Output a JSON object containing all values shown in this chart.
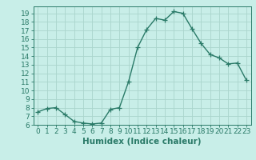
{
  "x": [
    0,
    1,
    2,
    3,
    4,
    5,
    6,
    7,
    8,
    9,
    10,
    11,
    12,
    13,
    14,
    15,
    16,
    17,
    18,
    19,
    20,
    21,
    22,
    23
  ],
  "y": [
    7.5,
    7.9,
    8.0,
    7.2,
    6.4,
    6.2,
    6.1,
    6.2,
    7.8,
    8.0,
    11.0,
    15.0,
    17.1,
    18.4,
    18.2,
    19.2,
    19.0,
    17.2,
    15.5,
    14.2,
    13.8,
    13.1,
    13.2,
    11.2
  ],
  "line_color": "#2a7a68",
  "marker": "+",
  "marker_size": 4,
  "bg_color": "#c8eee8",
  "grid_color": "#aad4cc",
  "xlabel": "Humidex (Indice chaleur)",
  "xlim": [
    -0.5,
    23.5
  ],
  "ylim": [
    6,
    19.8
  ],
  "yticks": [
    6,
    7,
    8,
    9,
    10,
    11,
    12,
    13,
    14,
    15,
    16,
    17,
    18,
    19
  ],
  "xticks": [
    0,
    1,
    2,
    3,
    4,
    5,
    6,
    7,
    8,
    9,
    10,
    11,
    12,
    13,
    14,
    15,
    16,
    17,
    18,
    19,
    20,
    21,
    22,
    23
  ],
  "xlabel_fontsize": 7.5,
  "tick_fontsize": 6.5,
  "line_width": 1.0
}
